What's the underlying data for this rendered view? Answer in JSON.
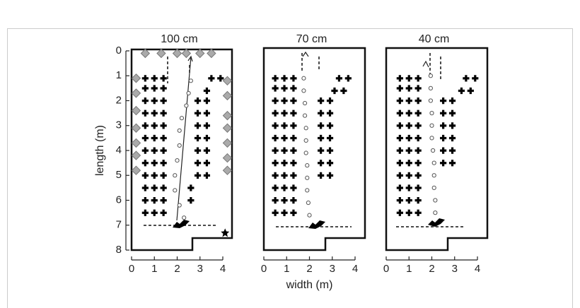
{
  "chart_data": [
    {
      "type": "scatter",
      "title": "100 cm",
      "ylabel": "length (m)",
      "xlim": [
        0,
        4
      ],
      "ylim": [
        0,
        8
      ],
      "y_inverted": true,
      "xticks": [
        0,
        1,
        2,
        3,
        4
      ],
      "yticks": [
        0,
        1,
        2,
        3,
        4,
        5,
        6,
        7,
        8
      ],
      "series": [
        {
          "marker": "plus",
          "color": "#000000",
          "points": [
            [
              0.6,
              1.1
            ],
            [
              1.0,
              1.1
            ],
            [
              1.4,
              1.1
            ],
            [
              0.6,
              1.5
            ],
            [
              1.0,
              1.5
            ],
            [
              1.4,
              1.5
            ],
            [
              0.6,
              2.0
            ],
            [
              1.0,
              2.0
            ],
            [
              1.4,
              2.0
            ],
            [
              0.6,
              2.5
            ],
            [
              1.0,
              2.5
            ],
            [
              1.4,
              2.5
            ],
            [
              0.6,
              3.0
            ],
            [
              1.0,
              3.0
            ],
            [
              1.4,
              3.0
            ],
            [
              0.6,
              3.5
            ],
            [
              1.0,
              3.5
            ],
            [
              1.4,
              3.5
            ],
            [
              0.6,
              4.0
            ],
            [
              1.0,
              4.0
            ],
            [
              1.4,
              4.0
            ],
            [
              0.6,
              4.5
            ],
            [
              1.0,
              4.5
            ],
            [
              1.4,
              4.5
            ],
            [
              0.6,
              5.0
            ],
            [
              1.0,
              5.0
            ],
            [
              1.4,
              5.0
            ],
            [
              0.6,
              5.5
            ],
            [
              1.0,
              5.5
            ],
            [
              1.4,
              5.5
            ],
            [
              0.6,
              6.0
            ],
            [
              1.0,
              6.0
            ],
            [
              1.4,
              6.0
            ],
            [
              0.6,
              6.5
            ],
            [
              1.0,
              6.5
            ],
            [
              1.4,
              6.5
            ],
            [
              3.5,
              1.1
            ],
            [
              3.9,
              1.1
            ],
            [
              3.3,
              1.6
            ],
            [
              2.9,
              2.0
            ],
            [
              3.3,
              2.0
            ],
            [
              2.9,
              2.5
            ],
            [
              3.3,
              2.5
            ],
            [
              2.9,
              3.0
            ],
            [
              3.3,
              3.0
            ],
            [
              2.9,
              3.5
            ],
            [
              3.3,
              3.5
            ],
            [
              2.9,
              4.0
            ],
            [
              3.3,
              4.0
            ],
            [
              2.9,
              4.5
            ],
            [
              3.3,
              4.5
            ],
            [
              2.9,
              5.0
            ],
            [
              3.3,
              5.0
            ],
            [
              2.6,
              5.5
            ],
            [
              2.6,
              6.0
            ]
          ]
        },
        {
          "marker": "circle",
          "color": "#555555",
          "points": [
            [
              2.3,
              6.7
            ],
            [
              2.1,
              6.2
            ],
            [
              1.9,
              5.6
            ],
            [
              1.9,
              5.0
            ],
            [
              2.0,
              4.4
            ],
            [
              2.1,
              3.8
            ],
            [
              2.1,
              3.2
            ],
            [
              2.2,
              2.7
            ],
            [
              2.4,
              2.2
            ],
            [
              2.5,
              1.7
            ],
            [
              2.6,
              1.2
            ]
          ]
        },
        {
          "marker": "diamond",
          "color": "#aaaaaa",
          "points": [
            [
              0.6,
              0.1
            ],
            [
              1.3,
              0.1
            ],
            [
              2.0,
              0.1
            ],
            [
              2.4,
              0.1
            ],
            [
              3.0,
              0.1
            ],
            [
              3.5,
              0.1
            ],
            [
              0.2,
              1.1
            ],
            [
              0.2,
              1.7
            ],
            [
              0.2,
              2.4
            ],
            [
              0.2,
              3.1
            ],
            [
              0.2,
              3.7
            ],
            [
              0.2,
              4.2
            ],
            [
              0.2,
              4.8
            ],
            [
              4.2,
              1.2
            ],
            [
              4.2,
              1.8
            ],
            [
              4.2,
              2.6
            ],
            [
              4.2,
              3.1
            ],
            [
              4.2,
              3.7
            ],
            [
              4.2,
              4.3
            ],
            [
              4.2,
              4.8
            ]
          ]
        },
        {
          "marker": "star",
          "color": "#000000",
          "points": [
            [
              4.1,
              7.3
            ]
          ]
        }
      ]
    },
    {
      "type": "scatter",
      "title": "70 cm",
      "xlabel": "width (m)",
      "xlim": [
        0,
        4
      ],
      "ylim": [
        0,
        8
      ],
      "y_inverted": true,
      "xticks": [
        0,
        1,
        2,
        3,
        4
      ],
      "series": [
        {
          "marker": "plus",
          "color": "#000000",
          "points": [
            [
              0.5,
              1.1
            ],
            [
              0.9,
              1.1
            ],
            [
              1.3,
              1.1
            ],
            [
              0.5,
              1.5
            ],
            [
              0.9,
              1.5
            ],
            [
              1.3,
              1.5
            ],
            [
              0.5,
              2.0
            ],
            [
              0.9,
              2.0
            ],
            [
              1.3,
              2.0
            ],
            [
              0.5,
              2.5
            ],
            [
              0.9,
              2.5
            ],
            [
              1.3,
              2.5
            ],
            [
              0.5,
              3.0
            ],
            [
              0.9,
              3.0
            ],
            [
              1.3,
              3.0
            ],
            [
              0.5,
              3.5
            ],
            [
              0.9,
              3.5
            ],
            [
              1.3,
              3.5
            ],
            [
              0.5,
              4.0
            ],
            [
              0.9,
              4.0
            ],
            [
              1.3,
              4.0
            ],
            [
              0.5,
              4.5
            ],
            [
              0.9,
              4.5
            ],
            [
              1.3,
              4.5
            ],
            [
              0.5,
              5.0
            ],
            [
              0.9,
              5.0
            ],
            [
              1.3,
              5.0
            ],
            [
              0.5,
              5.5
            ],
            [
              0.9,
              5.5
            ],
            [
              1.3,
              5.5
            ],
            [
              0.5,
              6.0
            ],
            [
              0.9,
              6.0
            ],
            [
              1.3,
              6.0
            ],
            [
              0.5,
              6.5
            ],
            [
              0.9,
              6.5
            ],
            [
              1.3,
              6.5
            ],
            [
              3.3,
              1.1
            ],
            [
              3.7,
              1.1
            ],
            [
              3.1,
              1.6
            ],
            [
              3.5,
              1.6
            ],
            [
              2.5,
              2.0
            ],
            [
              2.9,
              2.0
            ],
            [
              2.5,
              2.5
            ],
            [
              2.9,
              2.5
            ],
            [
              2.5,
              3.0
            ],
            [
              2.9,
              3.0
            ],
            [
              2.5,
              3.5
            ],
            [
              2.9,
              3.5
            ],
            [
              2.5,
              4.0
            ],
            [
              2.9,
              4.0
            ],
            [
              2.5,
              4.5
            ],
            [
              2.9,
              4.5
            ],
            [
              2.5,
              5.0
            ],
            [
              2.9,
              5.0
            ]
          ]
        },
        {
          "marker": "circle",
          "color": "#555555",
          "points": [
            [
              2.0,
              6.6
            ],
            [
              1.95,
              6.1
            ],
            [
              1.9,
              5.6
            ],
            [
              1.9,
              5.1
            ],
            [
              1.9,
              4.6
            ],
            [
              1.85,
              4.1
            ],
            [
              1.85,
              3.6
            ],
            [
              1.85,
              3.1
            ],
            [
              1.8,
              2.6
            ],
            [
              1.8,
              2.1
            ],
            [
              1.75,
              1.6
            ],
            [
              1.75,
              1.1
            ]
          ]
        }
      ]
    },
    {
      "type": "scatter",
      "title": "40 cm",
      "xlim": [
        0,
        4
      ],
      "ylim": [
        0,
        8
      ],
      "y_inverted": true,
      "xticks": [
        0,
        1,
        2,
        3,
        4
      ],
      "series": [
        {
          "marker": "plus",
          "color": "#000000",
          "points": [
            [
              0.6,
              1.1
            ],
            [
              1.0,
              1.1
            ],
            [
              1.4,
              1.1
            ],
            [
              0.6,
              1.5
            ],
            [
              1.0,
              1.5
            ],
            [
              1.4,
              1.5
            ],
            [
              0.6,
              2.0
            ],
            [
              1.0,
              2.0
            ],
            [
              1.4,
              2.0
            ],
            [
              0.6,
              2.5
            ],
            [
              1.0,
              2.5
            ],
            [
              1.4,
              2.5
            ],
            [
              0.6,
              3.0
            ],
            [
              1.0,
              3.0
            ],
            [
              1.4,
              3.0
            ],
            [
              0.6,
              3.5
            ],
            [
              1.0,
              3.5
            ],
            [
              1.4,
              3.5
            ],
            [
              0.6,
              4.0
            ],
            [
              1.0,
              4.0
            ],
            [
              1.4,
              4.0
            ],
            [
              0.6,
              4.5
            ],
            [
              1.0,
              4.5
            ],
            [
              1.4,
              4.5
            ],
            [
              0.6,
              5.0
            ],
            [
              1.0,
              5.0
            ],
            [
              1.4,
              5.0
            ],
            [
              0.6,
              5.5
            ],
            [
              1.0,
              5.5
            ],
            [
              1.4,
              5.5
            ],
            [
              0.6,
              6.0
            ],
            [
              1.0,
              6.0
            ],
            [
              1.4,
              6.0
            ],
            [
              0.6,
              6.5
            ],
            [
              1.0,
              6.5
            ],
            [
              1.4,
              6.5
            ],
            [
              3.5,
              1.1
            ],
            [
              3.9,
              1.1
            ],
            [
              3.3,
              1.6
            ],
            [
              3.7,
              1.6
            ],
            [
              2.5,
              2.0
            ],
            [
              2.9,
              2.0
            ],
            [
              2.5,
              2.5
            ],
            [
              2.9,
              2.5
            ],
            [
              2.5,
              3.0
            ],
            [
              2.9,
              3.0
            ],
            [
              2.5,
              3.5
            ],
            [
              2.9,
              3.5
            ],
            [
              2.5,
              4.0
            ],
            [
              2.9,
              4.0
            ],
            [
              2.5,
              4.5
            ],
            [
              2.9,
              4.5
            ]
          ]
        },
        {
          "marker": "circle",
          "color": "#555555",
          "points": [
            [
              2.15,
              6.5
            ],
            [
              2.15,
              6.0
            ],
            [
              2.1,
              5.5
            ],
            [
              2.1,
              5.0
            ],
            [
              2.1,
              4.5
            ],
            [
              2.05,
              4.0
            ],
            [
              2.0,
              3.5
            ],
            [
              2.0,
              3.0
            ],
            [
              2.0,
              2.5
            ],
            [
              1.95,
              2.0
            ],
            [
              1.95,
              1.5
            ],
            [
              1.95,
              1.0
            ]
          ]
        }
      ]
    }
  ]
}
